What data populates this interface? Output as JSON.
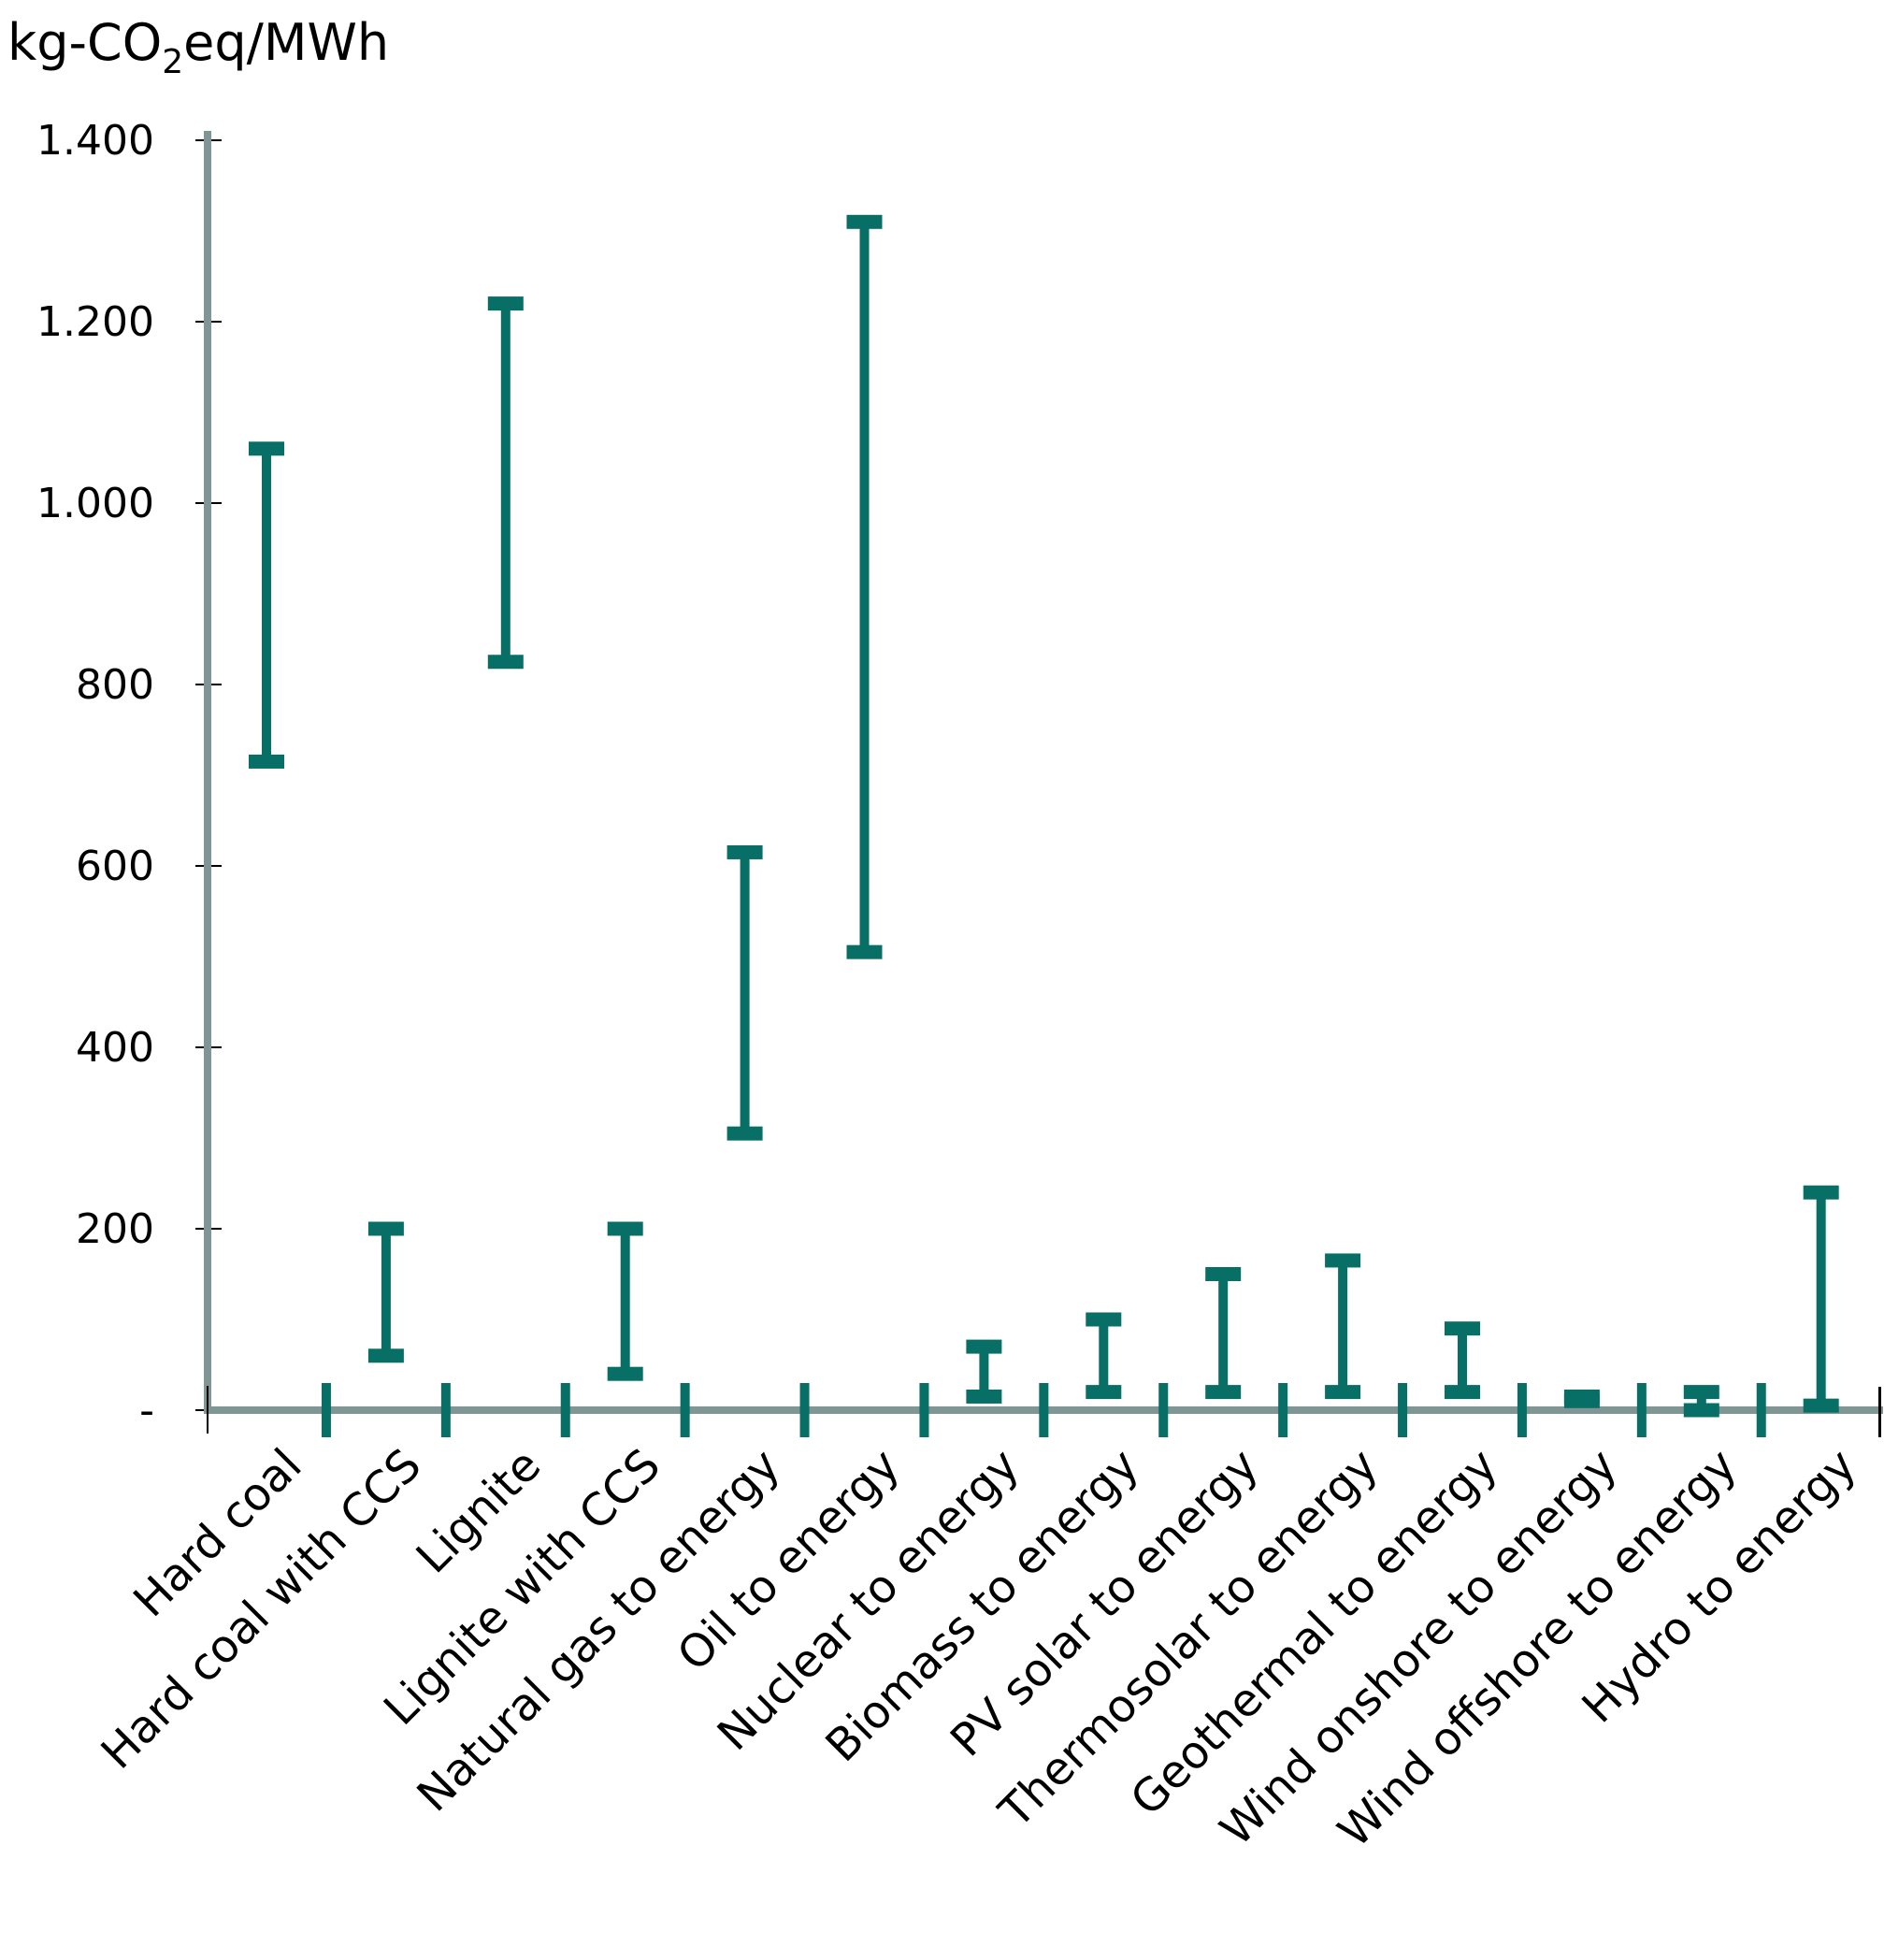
{
  "title": {
    "prefix": "kg-CO",
    "subscript": "2",
    "suffix": "eq/MWh"
  },
  "y_axis": {
    "unit": "kg-CO2eq/MWh",
    "ticks": [
      {
        "label": "1.400",
        "value": 1400
      },
      {
        "label": "1.200",
        "value": 1200
      },
      {
        "label": "1.000",
        "value": 1000
      },
      {
        "label": "800",
        "value": 800
      },
      {
        "label": "600",
        "value": 600
      },
      {
        "label": "400",
        "value": 400
      },
      {
        "label": "200",
        "value": 200
      },
      {
        "label": "-",
        "value": 0
      }
    ],
    "range": [
      0,
      1400
    ]
  },
  "colors": {
    "bar": "#086F66",
    "axis": "#7F9694",
    "tick": "#000000",
    "background": "#FFFFFF"
  },
  "chart_data": {
    "type": "bar",
    "subtype": "hi-lo-range",
    "title": "kg-CO2eq/MWh",
    "xlabel": "",
    "ylabel": "kg-CO2eq/MWh",
    "ylim": [
      0,
      1400
    ],
    "grid": false,
    "legend": "none",
    "categories": [
      "Hard coal",
      "Hard coal with CCS",
      "Lignite",
      "Lignite with CCS",
      "Natural gas to energy",
      "Oil to energy",
      "Nuclear to energy",
      "Biomass to energy",
      "PV solar to energy",
      "Thermosolar to energy",
      "Geothermal to energy",
      "Wind onshore to energy",
      "Wind offshore to energy",
      "Hydro to energy"
    ],
    "series": [
      {
        "name": "min",
        "values": [
          715,
          60,
          825,
          40,
          305,
          505,
          15,
          20,
          20,
          20,
          20,
          10,
          0,
          5
        ]
      },
      {
        "name": "max",
        "values": [
          1060,
          200,
          1220,
          200,
          615,
          1310,
          70,
          100,
          150,
          165,
          90,
          15,
          20,
          240
        ]
      }
    ],
    "ranges": [
      {
        "category": "Hard coal",
        "min": 715,
        "max": 1060
      },
      {
        "category": "Hard coal with CCS",
        "min": 60,
        "max": 200
      },
      {
        "category": "Lignite",
        "min": 825,
        "max": 1220
      },
      {
        "category": "Lignite with CCS",
        "min": 40,
        "max": 200
      },
      {
        "category": "Natural gas to energy",
        "min": 305,
        "max": 615
      },
      {
        "category": "Oil to energy",
        "min": 505,
        "max": 1310
      },
      {
        "category": "Nuclear to energy",
        "min": 15,
        "max": 70
      },
      {
        "category": "Biomass to energy",
        "min": 20,
        "max": 100
      },
      {
        "category": "PV solar to energy",
        "min": 20,
        "max": 150
      },
      {
        "category": "Thermosolar to energy",
        "min": 20,
        "max": 165
      },
      {
        "category": "Geothermal to energy",
        "min": 20,
        "max": 90
      },
      {
        "category": "Wind onshore to energy",
        "min": 10,
        "max": 15
      },
      {
        "category": "Wind offshore to energy",
        "min": 0,
        "max": 20
      },
      {
        "category": "Hydro to energy",
        "min": 5,
        "max": 240
      }
    ]
  }
}
